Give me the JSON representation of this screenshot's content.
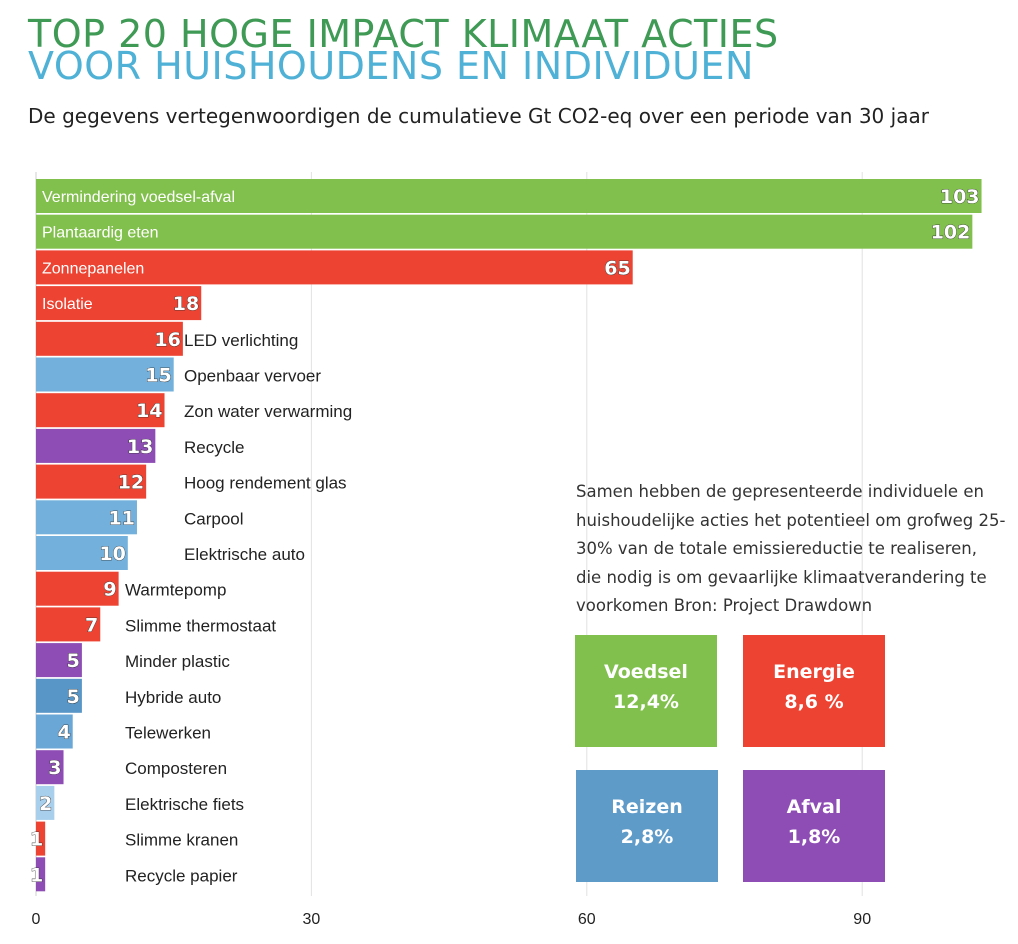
{
  "header": {
    "title_line1": "TOP 20 HOGE IMPACT KLIMAAT ACTIES",
    "title_line2": "VOOR HUISHOUDENS EN INDIVIDUEN",
    "subtitle": "De gegevens vertegenwoordigen de cumulatieve Gt CO2-eq over een periode van 30 jaar"
  },
  "colors": {
    "voedsel": "#82c04e",
    "energie": "#ec4332",
    "reizen_light": "#73b1dc",
    "reizen_mid": "#6aa7d6",
    "reizen_dark": "#5796c6",
    "reizen_pale": "#a8cfec",
    "afval": "#8e4db5",
    "title_green": "#3f9a55",
    "title_blue": "#4fb1d6"
  },
  "chart_data": {
    "type": "bar",
    "orientation": "horizontal",
    "xlim": [
      0,
      103
    ],
    "xticks": [
      0,
      30,
      60,
      90
    ],
    "grid": true,
    "bars": [
      {
        "label": "Vermindering  voedsel-afval",
        "value": 103,
        "category": "voedsel",
        "label_inside": true
      },
      {
        "label": "Plantaardig eten",
        "value": 102,
        "category": "voedsel",
        "label_inside": true
      },
      {
        "label": "Zonnepanelen",
        "value": 65,
        "category": "energie",
        "label_inside": true
      },
      {
        "label": "Isolatie",
        "value": 18,
        "category": "energie",
        "label_inside": true
      },
      {
        "label": "LED verlichting",
        "value": 16,
        "category": "energie",
        "label_inside": false
      },
      {
        "label": "Openbaar vervoer",
        "value": 15,
        "category": "reizen_light",
        "label_inside": false
      },
      {
        "label": "Zon water verwarming",
        "value": 14,
        "category": "energie",
        "label_inside": false
      },
      {
        "label": "Recycle",
        "value": 13,
        "category": "afval",
        "label_inside": false
      },
      {
        "label": "Hoog rendement glas",
        "value": 12,
        "category": "energie",
        "label_inside": false
      },
      {
        "label": "Carpool",
        "value": 11,
        "category": "reizen_light",
        "label_inside": false
      },
      {
        "label": "Elektrische auto",
        "value": 10,
        "category": "reizen_light",
        "label_inside": false
      },
      {
        "label": "Warmtepomp",
        "value": 9,
        "category": "energie",
        "label_inside": false
      },
      {
        "label": "Slimme thermostaat",
        "value": 7,
        "category": "energie",
        "label_inside": false
      },
      {
        "label": "Minder plastic",
        "value": 5,
        "category": "afval",
        "label_inside": false
      },
      {
        "label": "Hybride auto",
        "value": 5,
        "category": "reizen_dark",
        "label_inside": false
      },
      {
        "label": "Telewerken",
        "value": 4,
        "category": "reizen_mid",
        "label_inside": false
      },
      {
        "label": "Composteren",
        "value": 3,
        "category": "afval",
        "label_inside": false
      },
      {
        "label": "Elektrische fiets",
        "value": 2,
        "category": "reizen_pale",
        "label_inside": false
      },
      {
        "label": "Slimme kranen",
        "value": 1,
        "category": "energie",
        "label_inside": false
      },
      {
        "label": "Recycle papier",
        "value": 1,
        "category": "afval",
        "label_inside": false
      }
    ]
  },
  "note": {
    "text": "Samen hebben de gepresenteerde individuele en huishoudelijke acties het potentieel om grofweg 25-30% van de totale emissiereductie te realiseren, die nodig is om gevaarlijke klimaatverandering te voorkomen Bron: Project Drawdown"
  },
  "summary_boxes": {
    "voedsel": {
      "label": "Voedsel",
      "value": "12,4%",
      "color": "#82c04e"
    },
    "energie": {
      "label": "Energie",
      "value": "8,6 %",
      "color": "#ec4332"
    },
    "reizen": {
      "label": "Reizen",
      "value": "2,8%",
      "color": "#5f9bc9"
    },
    "afval": {
      "label": "Afval",
      "value": "1,8%",
      "color": "#8e4db5"
    }
  }
}
